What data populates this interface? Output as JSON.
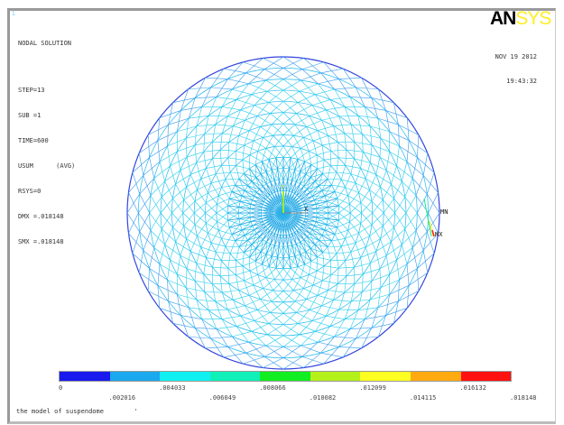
{
  "window_number": "1",
  "info": {
    "title": "NODAL SOLUTION",
    "lines": [
      "STEP=13",
      "SUB =1",
      "TIME=600",
      "USUM      (AVG)",
      "RSYS=0",
      "DMX =.018148",
      "SMX =.018148"
    ]
  },
  "logo": {
    "part1": "AN",
    "part2": "SYS"
  },
  "date": "NOV 19 2012",
  "time": "19:43:32",
  "markers": {
    "min": "MN",
    "max": "MX",
    "axis_x": "X",
    "axis_y": "Y"
  },
  "legend": {
    "colors": [
      "#1a1aee",
      "#1aa8ee",
      "#11f0f0",
      "#11f0b8",
      "#11ee22",
      "#b4f01a",
      "#ffff22",
      "#ffaa11",
      "#ff1111"
    ],
    "top_labels": [
      "0",
      ".004033",
      ".008066",
      ".012099",
      ".016132"
    ],
    "bottom_labels": [
      ".002016",
      ".006049",
      ".010082",
      ".014115",
      ".018148"
    ]
  },
  "caption": "the model of suspendome",
  "caption_mark": "'"
}
